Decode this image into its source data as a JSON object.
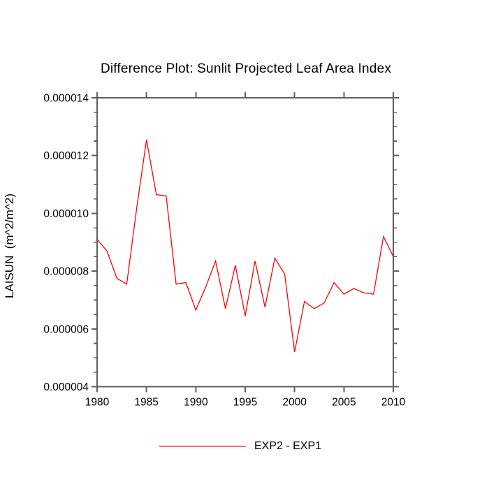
{
  "chart_data": {
    "type": "line",
    "title": "Difference Plot: Sunlit Projected Leaf Area Index",
    "xlabel": "",
    "ylabel": "LAISUN  (m^2/m^2)",
    "legend": [
      "EXP2 - EXP1"
    ],
    "legend_position": "bottom-center",
    "grid": false,
    "xlim": [
      1980,
      2010
    ],
    "ylim": [
      4e-06,
      1.4e-05
    ],
    "xticks": [
      1980,
      1985,
      1990,
      1995,
      2000,
      2005,
      2010
    ],
    "xtick_labels": [
      "1980",
      "1985",
      "1990",
      "1995",
      "2000",
      "2005",
      "2010"
    ],
    "yticks": [
      4e-06,
      6e-06,
      8e-06,
      1e-05,
      1.2e-05,
      1.4e-05
    ],
    "ytick_labels": [
      "0.000004",
      "0.000006",
      "0.000008",
      "0.000010",
      "0.000012",
      "0.000014"
    ],
    "y_minor_step": 5e-07,
    "axis_color": "#5f5f5f",
    "text_color": "#000000",
    "x": [
      1980,
      1981,
      1982,
      1983,
      1984,
      1985,
      1986,
      1987,
      1988,
      1989,
      1990,
      1991,
      1992,
      1993,
      1994,
      1995,
      1996,
      1997,
      1998,
      1999,
      2000,
      2001,
      2002,
      2003,
      2004,
      2005,
      2006,
      2007,
      2008,
      2009,
      2010
    ],
    "series": [
      {
        "name": "EXP2 - EXP1",
        "color": "#ff0000",
        "values": [
          9.1e-06,
          8.7e-06,
          7.75e-06,
          7.55e-06,
          1.015e-05,
          1.255e-05,
          1.065e-05,
          1.06e-05,
          7.55e-06,
          7.6e-06,
          6.65e-06,
          7.45e-06,
          8.35e-06,
          6.7e-06,
          8.2e-06,
          6.45e-06,
          8.35e-06,
          6.75e-06,
          8.45e-06,
          7.9e-06,
          5.2e-06,
          6.95e-06,
          6.7e-06,
          6.9e-06,
          7.6e-06,
          7.2e-06,
          7.4e-06,
          7.25e-06,
          7.2e-06,
          9.2e-06,
          8.5e-06
        ]
      }
    ],
    "legend_line_color": "#ff6b6b"
  }
}
